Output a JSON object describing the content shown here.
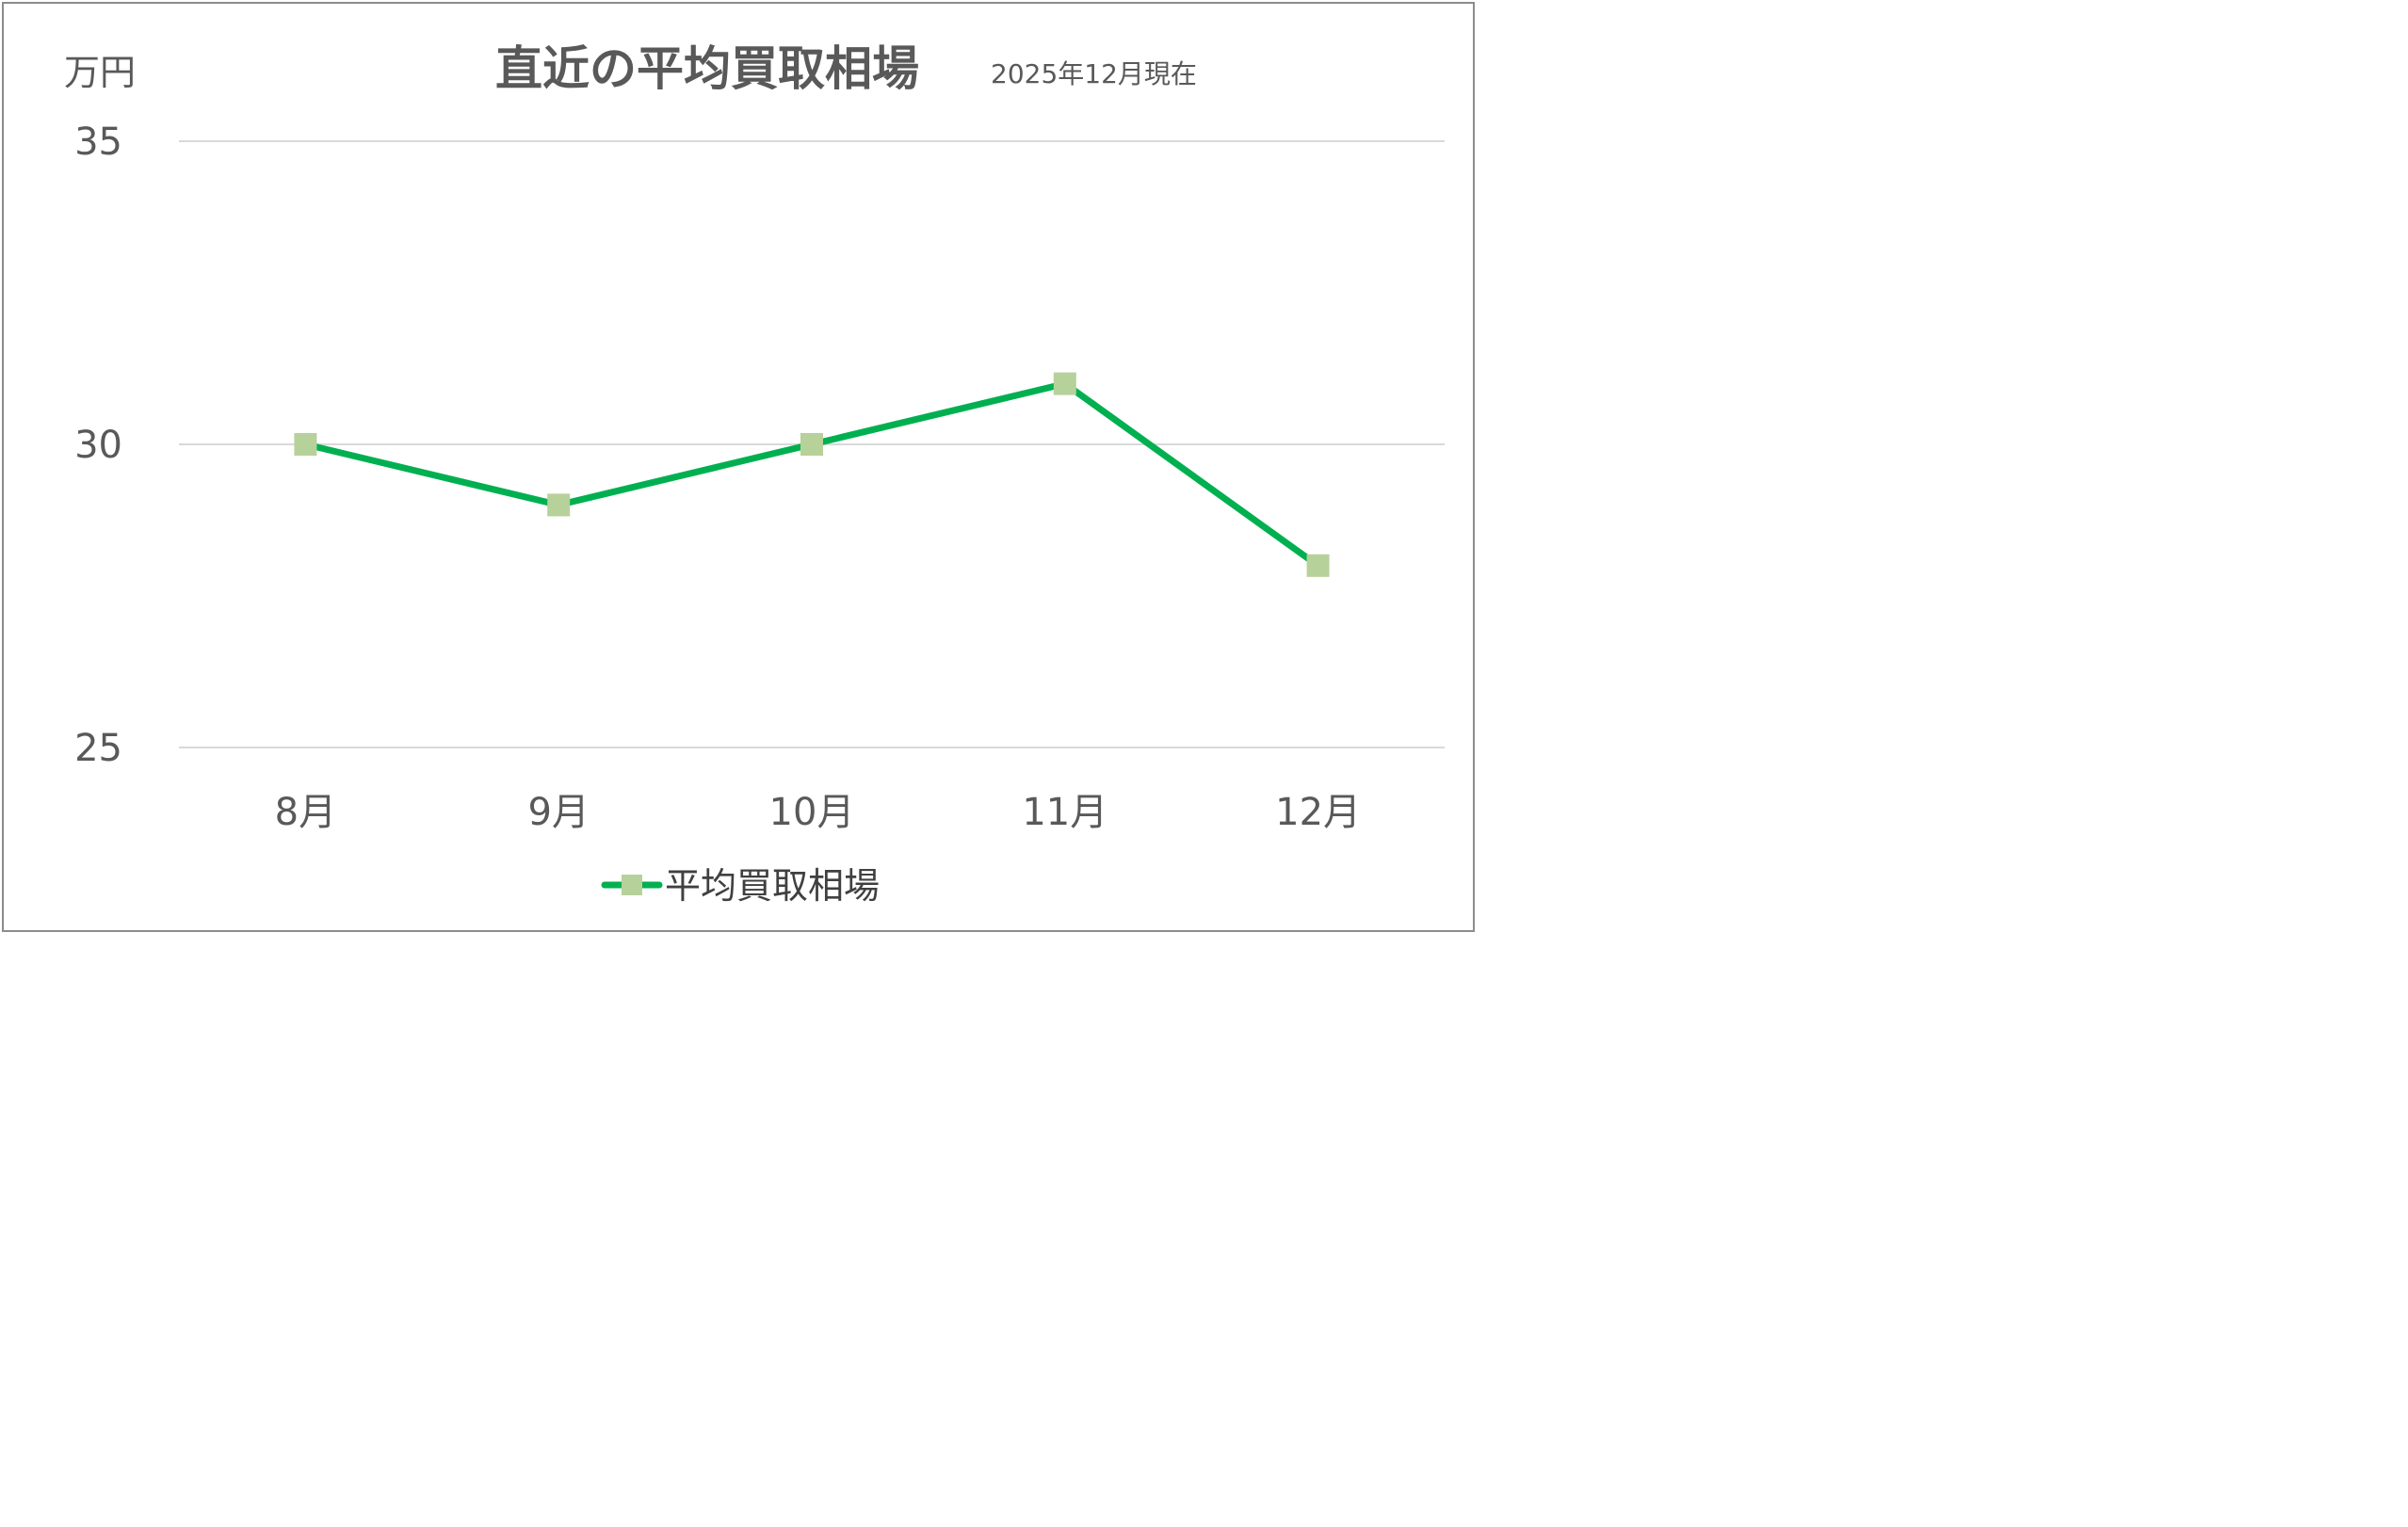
{
  "chart_data": {
    "type": "line",
    "title": "直近の平均買取相場",
    "subtitle": "2025年12月現在",
    "ylabel": "万円",
    "xlabel": "",
    "categories": [
      "8月",
      "9月",
      "10月",
      "11月",
      "12月"
    ],
    "series": [
      {
        "name": "平均買取相場",
        "values": [
          30,
          29,
          30,
          31,
          28
        ],
        "line_color": "#00b050",
        "marker_color": "#b7d19a",
        "marker": "square"
      }
    ],
    "ylim": [
      25,
      35
    ],
    "yticks": [
      "25",
      "30",
      "35"
    ],
    "grid": true,
    "legend_position": "bottom"
  }
}
